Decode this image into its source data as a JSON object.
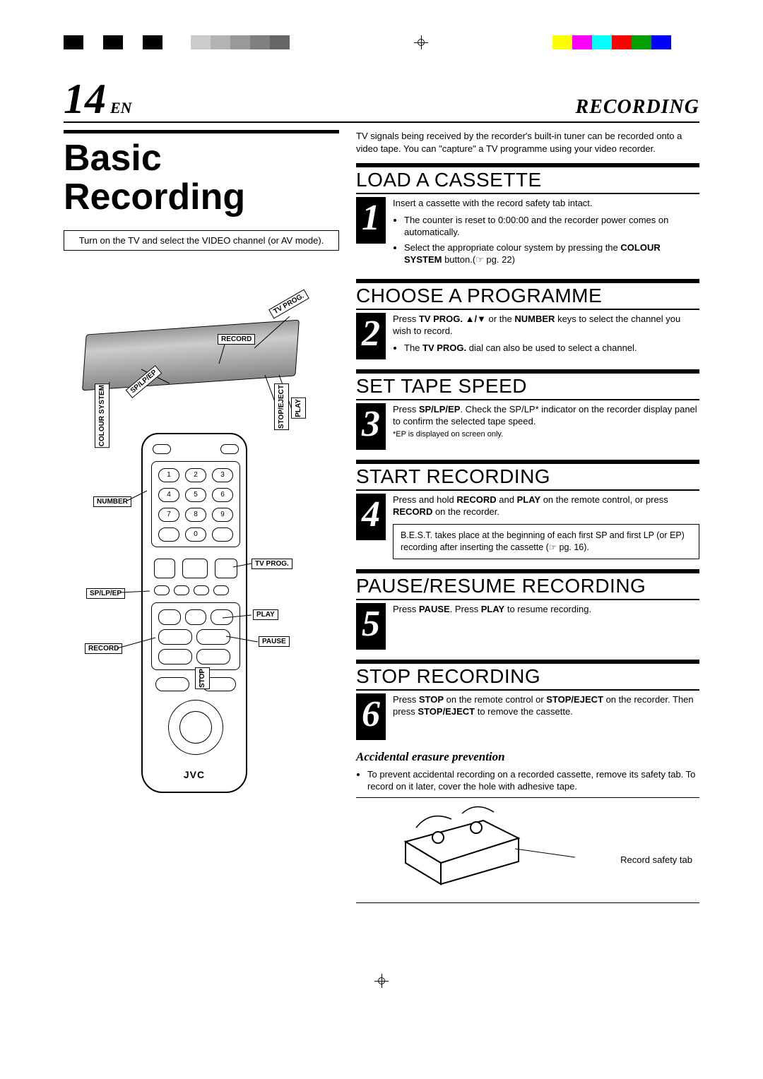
{
  "color_bars": {
    "left": [
      "#000000",
      "#ffffff",
      "#000000",
      "#ffffff",
      "#000000"
    ],
    "mid": [
      "#cccccc",
      "#b3b3b3",
      "#999999",
      "#808080",
      "#666666"
    ],
    "right": [
      "#ffff00",
      "#ff00ff",
      "#00ffff",
      "#ff0000",
      "#00a000",
      "#0000ff"
    ]
  },
  "header": {
    "page_number": "14",
    "lang_suffix": "EN",
    "section": "RECORDING"
  },
  "left": {
    "main_title": "Basic Recording",
    "boxed_note": "Turn on the TV and select the VIDEO channel (or AV mode).",
    "vcr_labels": {
      "tv_prog": "TV PROG.",
      "record": "RECORD",
      "sp_lp_ep": "SP/LP/EP",
      "colour_system": "COLOUR SYSTEM",
      "stop_eject": "STOP/EJECT",
      "play": "PLAY"
    },
    "remote_labels": {
      "number": "NUMBER",
      "tv_prog": "TV PROG.",
      "sp_lp_ep": "SP/LP/EP",
      "play": "PLAY",
      "pause": "PAUSE",
      "record": "RECORD",
      "stop": "STOP",
      "brand": "JVC"
    }
  },
  "right": {
    "intro": "TV signals being received by the recorder's built-in tuner can be recorded onto a video tape. You can \"capture\" a TV programme using your video recorder.",
    "steps": [
      {
        "num": "1",
        "title": "LOAD A CASSETTE",
        "lead": "Insert a cassette with the record safety tab intact.",
        "bullets": [
          "The counter is reset to 0:00:00 and the recorder power comes on automatically.",
          "Select the appropriate colour system by pressing the <b>COLOUR SYSTEM</b> button.(☞ pg. 22)"
        ]
      },
      {
        "num": "2",
        "title": "CHOOSE A PROGRAMME",
        "lead": "Press <b>TV PROG. ▲/▼</b> or the <b>NUMBER</b> keys to select the channel you wish to record.",
        "bullets": [
          "The <b>TV PROG.</b> dial can also be used to select a channel."
        ]
      },
      {
        "num": "3",
        "title": "SET TAPE SPEED",
        "lead": "Press <b>SP/LP/EP</b>. Check the SP/LP* indicator on the recorder display panel to confirm the selected tape speed.",
        "foot": "*EP is displayed on screen only."
      },
      {
        "num": "4",
        "title": "START RECORDING",
        "lead": "Press and hold <b>RECORD</b> and <b>PLAY</b> on the remote control, or press <b>RECORD</b> on the recorder.",
        "note": "B.E.S.T. takes place at the beginning of each first SP and first LP (or EP) recording after inserting the cassette (☞ pg. 16)."
      },
      {
        "num": "5",
        "title": "PAUSE/RESUME RECORDING",
        "lead": "Press <b>PAUSE</b>. Press <b>PLAY</b> to resume recording."
      },
      {
        "num": "6",
        "title": "STOP RECORDING",
        "lead": "Press <b>STOP</b> on the remote control or <b>STOP/EJECT</b> on the recorder. Then press <b>STOP/EJECT</b> to remove the cassette."
      }
    ],
    "erasure": {
      "title": "Accidental erasure prevention",
      "bullet": "To prevent accidental recording on a recorded cassette, remove its safety tab. To record on it later, cover the hole with adhesive tape.",
      "tab_label": "Record safety tab"
    }
  }
}
